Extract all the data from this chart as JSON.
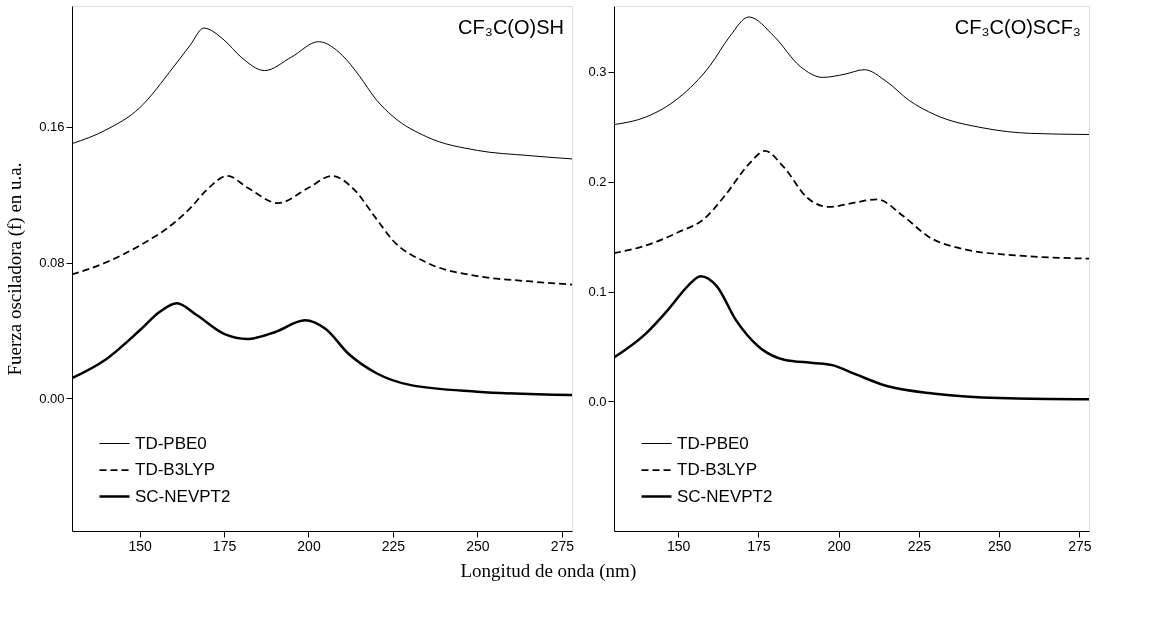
{
  "chart_data": [
    {
      "type": "line",
      "xlabel": "Longitud de onda (nm)",
      "ylabel": "Fuerza osciladora (f) en u.a.",
      "annotations": [
        "CF₃C(O)SH"
      ],
      "xlim": [
        130,
        278
      ],
      "ylim": [
        -0.078,
        0.231
      ],
      "xticks": [
        150,
        175,
        200,
        225,
        250,
        275
      ],
      "yticks": [
        {
          "value": 0,
          "label": "0.00"
        },
        {
          "value": 0.08,
          "label": "0.08"
        },
        {
          "value": 0.16,
          "label": "0.16"
        }
      ],
      "grid": false,
      "legend": "bottom left",
      "marker": "none",
      "series": [
        {
          "name": "TD-PBE0",
          "color": "#000000",
          "line_style": "solid",
          "x": [
            130,
            140,
            150,
            160,
            165,
            169,
            175,
            180,
            187,
            195,
            203,
            210,
            215,
            220,
            225,
            235,
            250,
            265,
            278
          ],
          "values": [
            0.15,
            0.158,
            0.171,
            0.195,
            0.208,
            0.218,
            0.211,
            0.201,
            0.193,
            0.201,
            0.21,
            0.202,
            0.19,
            0.176,
            0.166,
            0.154,
            0.146,
            0.143,
            0.141
          ]
        },
        {
          "name": "TD-B3LYP",
          "color": "#000000",
          "line_style": "dashed",
          "x": [
            130,
            140,
            150,
            160,
            165,
            170,
            176,
            182,
            191,
            200,
            207,
            213,
            220,
            225,
            235,
            250,
            265,
            278
          ],
          "values": [
            0.073,
            0.08,
            0.09,
            0.103,
            0.112,
            0.123,
            0.131,
            0.124,
            0.115,
            0.124,
            0.131,
            0.124,
            0.106,
            0.093,
            0.08,
            0.072,
            0.069,
            0.067
          ]
        },
        {
          "name": "SC-NEVPT2",
          "color": "#000000",
          "line_style": "solid",
          "x": [
            130,
            140,
            150,
            156,
            161,
            167,
            175,
            182,
            190,
            199,
            205,
            212,
            220,
            230,
            250,
            278
          ],
          "values": [
            0.012,
            0.023,
            0.04,
            0.051,
            0.056,
            0.049,
            0.038,
            0.035,
            0.039,
            0.046,
            0.041,
            0.026,
            0.015,
            0.008,
            0.004,
            0.002
          ]
        }
      ]
    },
    {
      "type": "line",
      "annotations": [
        "CF₃C(O)SCF₃"
      ],
      "xlim": [
        130,
        278
      ],
      "ylim": [
        -0.118,
        0.36
      ],
      "xticks": [
        150,
        175,
        200,
        225,
        250,
        275
      ],
      "yticks": [
        {
          "value": 0,
          "label": "0.0"
        },
        {
          "value": 0.1,
          "label": "0.1"
        },
        {
          "value": 0.2,
          "label": "0.2"
        },
        {
          "value": 0.3,
          "label": "0.3"
        }
      ],
      "grid": false,
      "legend": "bottom left",
      "marker": "none",
      "series": [
        {
          "name": "TD-PBE0",
          "color": "#000000",
          "line_style": "solid",
          "x": [
            130,
            140,
            150,
            160,
            166,
            172,
            180,
            188,
            195,
            202,
            208,
            215,
            222,
            230,
            245,
            260,
            278
          ],
          "values": [
            0.252,
            0.259,
            0.276,
            0.306,
            0.332,
            0.35,
            0.332,
            0.305,
            0.295,
            0.298,
            0.302,
            0.291,
            0.274,
            0.261,
            0.249,
            0.244,
            0.243
          ]
        },
        {
          "name": "TD-B3LYP",
          "color": "#000000",
          "line_style": "dashed",
          "x": [
            130,
            140,
            150,
            158,
            165,
            172,
            177,
            183,
            190,
            197,
            205,
            212,
            220,
            228,
            240,
            255,
            278
          ],
          "values": [
            0.135,
            0.142,
            0.154,
            0.166,
            0.189,
            0.216,
            0.228,
            0.213,
            0.186,
            0.177,
            0.181,
            0.184,
            0.169,
            0.15,
            0.138,
            0.133,
            0.13
          ]
        },
        {
          "name": "SC-NEVPT2",
          "color": "#000000",
          "line_style": "solid",
          "x": [
            130,
            140,
            147,
            153,
            157,
            162,
            168,
            175,
            183,
            192,
            198,
            205,
            215,
            230,
            250,
            278
          ],
          "values": [
            0.04,
            0.062,
            0.084,
            0.105,
            0.114,
            0.105,
            0.074,
            0.05,
            0.038,
            0.035,
            0.033,
            0.025,
            0.014,
            0.007,
            0.003,
            0.002
          ]
        }
      ]
    }
  ]
}
